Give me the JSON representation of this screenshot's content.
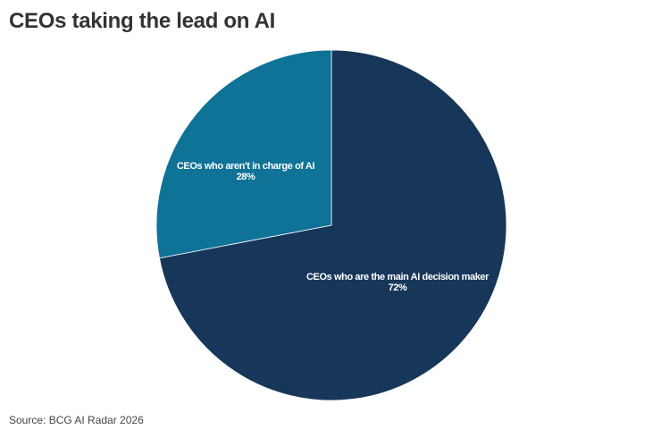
{
  "chart_data": {
    "type": "pie",
    "title": "CEOs taking the lead on AI",
    "source": "Source: BCG AI Radar 2026",
    "slices": [
      {
        "label": "CEOs who are the main AI decision maker",
        "value": 72,
        "value_label": "72%",
        "color": "#17375A"
      },
      {
        "label": "CEOs who aren't in charge of AI",
        "value": 28,
        "value_label": "28%",
        "color": "#0F7297"
      }
    ],
    "start_angle": "top",
    "direction": "clockwise",
    "legend": "none"
  }
}
